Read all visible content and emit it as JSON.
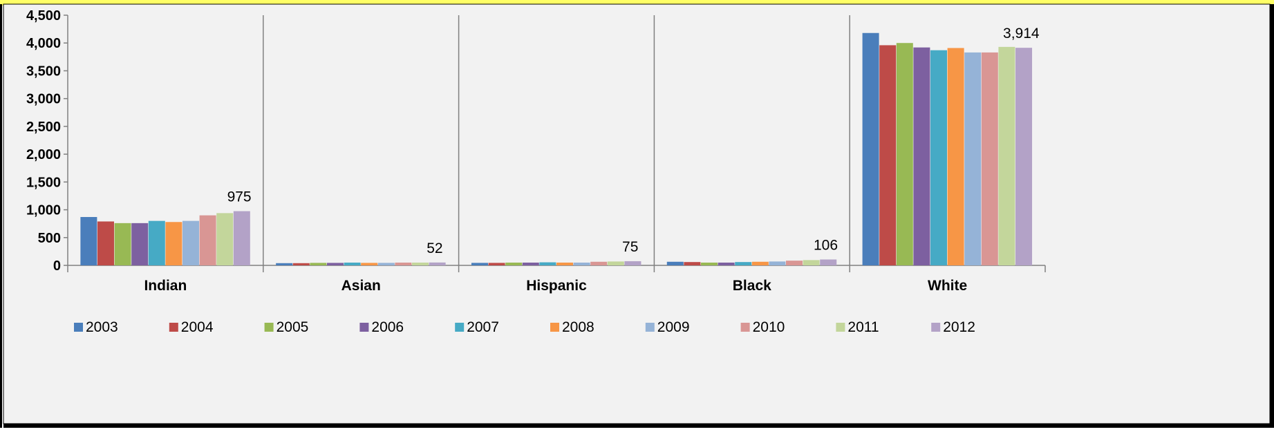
{
  "chart_data": {
    "type": "bar",
    "title": "",
    "xlabel": "",
    "ylabel": "",
    "ylim": [
      0,
      4500
    ],
    "yticks": [
      "0",
      "500",
      "1,000",
      "1,500",
      "2,000",
      "2,500",
      "3,000",
      "3,500",
      "4,000",
      "4,500"
    ],
    "categories": [
      "Indian",
      "Asian",
      "Hispanic",
      "Black",
      "White"
    ],
    "grid": false,
    "legend_position": "bottom",
    "series": [
      {
        "name": "2003",
        "color": "#4A7EBB",
        "values": [
          870,
          40,
          45,
          65,
          4180
        ]
      },
      {
        "name": "2004",
        "color": "#BE4B48",
        "values": [
          790,
          40,
          45,
          60,
          3960
        ]
      },
      {
        "name": "2005",
        "color": "#98B954",
        "values": [
          760,
          45,
          50,
          50,
          4000
        ]
      },
      {
        "name": "2006",
        "color": "#7D60A0",
        "values": [
          760,
          45,
          50,
          50,
          3920
        ]
      },
      {
        "name": "2007",
        "color": "#46AAC5",
        "values": [
          800,
          50,
          55,
          60,
          3870
        ]
      },
      {
        "name": "2008",
        "color": "#F79646",
        "values": [
          780,
          45,
          50,
          65,
          3910
        ]
      },
      {
        "name": "2009",
        "color": "#95B3D7",
        "values": [
          800,
          45,
          50,
          70,
          3830
        ]
      },
      {
        "name": "2010",
        "color": "#D99694",
        "values": [
          900,
          50,
          65,
          85,
          3830
        ]
      },
      {
        "name": "2011",
        "color": "#C3D69B",
        "values": [
          940,
          50,
          70,
          95,
          3930
        ]
      },
      {
        "name": "2012",
        "color": "#B3A2C7",
        "values": [
          975,
          52,
          75,
          106,
          3914
        ]
      }
    ],
    "data_labels": [
      {
        "series": "2012",
        "category": "Indian",
        "text": "975"
      },
      {
        "series": "2012",
        "category": "Asian",
        "text": "52"
      },
      {
        "series": "2012",
        "category": "Hispanic",
        "text": "75"
      },
      {
        "series": "2012",
        "category": "Black",
        "text": "106"
      },
      {
        "series": "2012",
        "category": "White",
        "text": "3,914"
      }
    ]
  }
}
